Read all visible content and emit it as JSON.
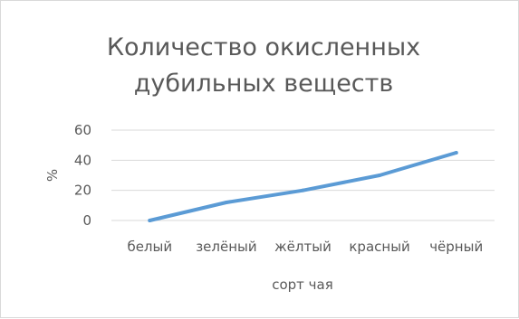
{
  "chart_data": {
    "type": "line",
    "title": [
      "Количество окисленных",
      "дубильных веществ"
    ],
    "xlabel": "сорт чая",
    "ylabel": "%",
    "categories": [
      "белый",
      "зелёный",
      "жёлтый",
      "красный",
      "чёрный"
    ],
    "series": [
      {
        "values": [
          0,
          12,
          20,
          30,
          45
        ],
        "color": "#5b9bd5"
      }
    ],
    "ylim": [
      0,
      60
    ],
    "yticks": [
      0,
      20,
      40,
      60
    ],
    "grid": true,
    "legend": "none"
  }
}
